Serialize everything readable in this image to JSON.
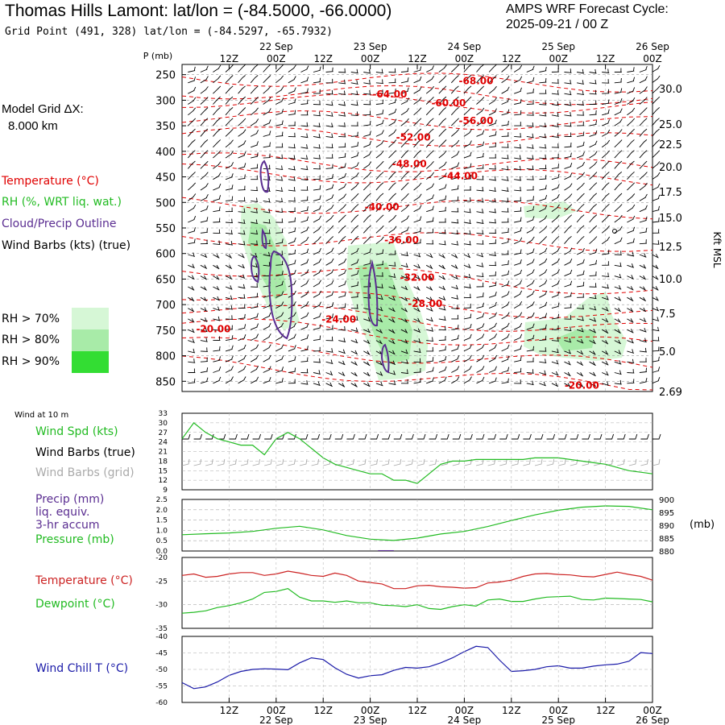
{
  "header": {
    "title": "Thomas Hills Lamont:  lat/lon = (-84.5000, -66.0000)",
    "grid_point": "Grid Point (491, 328) lat/lon = (-84.5297, -65.7932)",
    "cycle_label": "AMPS WRF Forecast Cycle:",
    "cycle_value": "2025-09-21 / 00  Z"
  },
  "legend": {
    "grid_dx_label": "Model Grid ΔX:",
    "grid_dx_value": "8.000 km",
    "temperature": "Temperature (°C)",
    "rh": "RH (%, WRT liq. wat.)",
    "cloud": "Cloud/Precip Outline",
    "wind": "Wind Barbs (kts) (true)",
    "rh70": "RH > 70%",
    "rh80": "RH > 80%",
    "rh90": "RH > 90%"
  },
  "colors": {
    "temperature": "#e00000",
    "rh70": "#d6f7d6",
    "rh80": "#a8eba8",
    "rh90": "#33dd33",
    "cloud": "#5a2d91",
    "windspd": "#22bb22",
    "wind_grid": "#aaaaaa",
    "windchill": "#1a1aa8"
  },
  "chart_data": [
    {
      "id": "profile",
      "type": "heatmap",
      "ylabel": "P (mb)",
      "right_label": "Kft MSL",
      "ylim": [
        870,
        230
      ],
      "y_ticks": [
        250,
        300,
        350,
        400,
        450,
        500,
        550,
        600,
        650,
        700,
        750,
        800,
        850
      ],
      "right_ticks": [
        "30.0",
        "25.0",
        "22.5",
        "20.0",
        "17.5",
        "15.0",
        "12.5",
        "10.0",
        "7.5",
        "5.0",
        "2.69"
      ],
      "x_top_ticks": [
        "12Z",
        "00Z",
        "12Z",
        "00Z",
        "12Z",
        "00Z",
        "12Z",
        "00Z",
        "12Z",
        "00Z"
      ],
      "x_top_dates": [
        "22 Sep",
        "23 Sep",
        "24 Sep",
        "25 Sep",
        "26 Sep"
      ],
      "x_range_hours": [
        0,
        120
      ],
      "temperature_labels": [
        {
          "label": "-68.00",
          "hour": 75,
          "p": 262
        },
        {
          "label": "-64.00",
          "hour": 53,
          "p": 288
        },
        {
          "label": "-60.00",
          "hour": 68,
          "p": 306
        },
        {
          "label": "-56.00",
          "hour": 75,
          "p": 340
        },
        {
          "label": "-52.00",
          "hour": 59,
          "p": 373
        },
        {
          "label": "-48.00",
          "hour": 58,
          "p": 425
        },
        {
          "label": "-44.00",
          "hour": 71,
          "p": 448
        },
        {
          "label": "-40.00",
          "hour": 51,
          "p": 509
        },
        {
          "label": "-36.00",
          "hour": 56,
          "p": 574
        },
        {
          "label": "-32.00",
          "hour": 60,
          "p": 647
        },
        {
          "label": "-28.00",
          "hour": 62,
          "p": 698
        },
        {
          "label": "-24.00",
          "hour": 40,
          "p": 729
        },
        {
          "label": "-20.00",
          "hour": 8,
          "p": 748
        },
        {
          "label": "-20.00",
          "hour": 102,
          "p": 858
        }
      ]
    },
    {
      "id": "wind10m",
      "type": "line",
      "title": "Wind at 10 m",
      "series": [
        {
          "name": "Wind Spd (kts)"
        }
      ],
      "extra_labels": [
        "Wind Barbs (true)",
        "Wind Barbs (grid)"
      ],
      "ylim": [
        9,
        33
      ],
      "y_ticks": [
        9,
        12,
        15,
        18,
        21,
        24,
        27,
        30,
        33
      ],
      "x": [
        0,
        3,
        6,
        9,
        12,
        15,
        18,
        21,
        24,
        27,
        30,
        33,
        36,
        39,
        42,
        45,
        48,
        51,
        54,
        57,
        60,
        63,
        66,
        69,
        72,
        75,
        78,
        81,
        84,
        87,
        90,
        93,
        96,
        99,
        102,
        105,
        108,
        111,
        114,
        117,
        120
      ],
      "values": [
        25,
        30,
        27,
        25,
        24,
        23,
        23,
        20,
        25,
        27,
        25,
        22,
        19,
        17,
        16,
        15,
        14,
        14,
        12,
        12,
        11,
        14,
        17,
        18,
        18,
        18.5,
        18.5,
        18.5,
        18.5,
        18.5,
        19,
        19,
        19,
        18.5,
        18,
        17.5,
        17,
        16,
        15,
        14.5,
        14
      ]
    },
    {
      "id": "precip",
      "type": "line",
      "series": [
        {
          "name": "Pressure (mb)"
        }
      ],
      "extra_labels": [
        "Precip (mm)",
        "liq. equiv.",
        "3-hr accum"
      ],
      "right_label": "(mb)",
      "ylim": [
        0,
        2.5
      ],
      "y_ticks": [
        "0.0",
        "0.5",
        "1.0",
        "1.5",
        "2.0",
        "2.5"
      ],
      "right_ticks": [
        880,
        885,
        890,
        895,
        900
      ],
      "right_lim": [
        880,
        900
      ],
      "x": [
        0,
        6,
        12,
        18,
        24,
        30,
        36,
        42,
        48,
        54,
        60,
        66,
        72,
        78,
        84,
        90,
        96,
        102,
        108,
        114,
        120
      ],
      "pressure": [
        886.3,
        886.7,
        887.0,
        887.6,
        888.8,
        889.6,
        888.2,
        886.0,
        884.6,
        884.1,
        885.0,
        886.6,
        887.6,
        889.5,
        891.8,
        894.0,
        895.8,
        897.0,
        897.5,
        897.3,
        896.0
      ],
      "precip_x": [
        50,
        54
      ],
      "precip": [
        0.04,
        0.04
      ]
    },
    {
      "id": "temp",
      "type": "line",
      "ylim": [
        -35,
        -20
      ],
      "y_ticks": [
        -20,
        -25,
        -30,
        -35
      ],
      "x": [
        0,
        3,
        6,
        9,
        12,
        15,
        18,
        21,
        24,
        27,
        30,
        33,
        36,
        39,
        42,
        45,
        48,
        51,
        54,
        57,
        60,
        63,
        66,
        69,
        72,
        75,
        78,
        81,
        84,
        87,
        90,
        93,
        96,
        99,
        102,
        105,
        108,
        111,
        114,
        117,
        120
      ],
      "series": [
        {
          "name": "Temperature (°C)",
          "values": [
            -23.8,
            -23.5,
            -24.2,
            -24.0,
            -23.5,
            -23.2,
            -23.2,
            -23.8,
            -23.5,
            -22.9,
            -23.3,
            -23.8,
            -24.0,
            -23.3,
            -23.8,
            -25.0,
            -25.3,
            -25.6,
            -26.6,
            -26.6,
            -26.0,
            -25.9,
            -26.2,
            -26.3,
            -26.5,
            -26.4,
            -25.4,
            -25.2,
            -24.8,
            -24.0,
            -23.5,
            -23.4,
            -23.6,
            -23.7,
            -24.0,
            -24.1,
            -23.6,
            -23.1,
            -23.6,
            -24.0,
            -24.8
          ]
        },
        {
          "name": "Dewpoint (°C)",
          "values": [
            -31.8,
            -31.6,
            -31.3,
            -30.6,
            -30.2,
            -29.6,
            -28.8,
            -27.4,
            -27.2,
            -26.6,
            -28.4,
            -29.2,
            -29.2,
            -29.5,
            -29.2,
            -29.6,
            -29.6,
            -30.1,
            -30.2,
            -30.4,
            -30.0,
            -30.8,
            -31.0,
            -30.4,
            -30.0,
            -30.3,
            -29.0,
            -28.8,
            -29.3,
            -29.3,
            -28.8,
            -28.4,
            -28.3,
            -28.2,
            -28.9,
            -29.0,
            -28.6,
            -28.7,
            -28.8,
            -28.9,
            -29.4
          ]
        }
      ]
    },
    {
      "id": "windchill",
      "type": "line",
      "series": [
        {
          "name": "Wind Chill T (°C)"
        }
      ],
      "ylim": [
        -60,
        -40
      ],
      "y_ticks": [
        -40,
        -45,
        -50,
        -55,
        -60
      ],
      "x_bottom_ticks": [
        "12Z",
        "00Z",
        "12Z",
        "00Z",
        "12Z",
        "00Z",
        "12Z",
        "00Z",
        "12Z",
        "00Z"
      ],
      "x_bottom_dates": [
        "22 Sep",
        "23 Sep",
        "24 Sep",
        "25 Sep",
        "26 Sep"
      ],
      "x": [
        0,
        3,
        6,
        9,
        12,
        15,
        18,
        21,
        24,
        27,
        30,
        33,
        36,
        39,
        42,
        45,
        48,
        51,
        54,
        57,
        60,
        63,
        66,
        69,
        72,
        75,
        78,
        81,
        84,
        87,
        90,
        93,
        96,
        99,
        102,
        105,
        108,
        111,
        114,
        117,
        120
      ],
      "values": [
        -54,
        -55.8,
        -55.3,
        -53.8,
        -51.8,
        -50.6,
        -50.0,
        -49.8,
        -49.9,
        -50.1,
        -48.0,
        -46.5,
        -47.0,
        -49.5,
        -51.5,
        -52.6,
        -51.9,
        -51.6,
        -50.3,
        -49.4,
        -49.6,
        -49.2,
        -48.0,
        -46.5,
        -44.6,
        -43.0,
        -43.4,
        -47.2,
        -50.6,
        -50.4,
        -50.0,
        -49.2,
        -48.9,
        -49.6,
        -49.6,
        -49.0,
        -48.6,
        -48.4,
        -47.5,
        -44.9,
        -45.2
      ]
    }
  ]
}
